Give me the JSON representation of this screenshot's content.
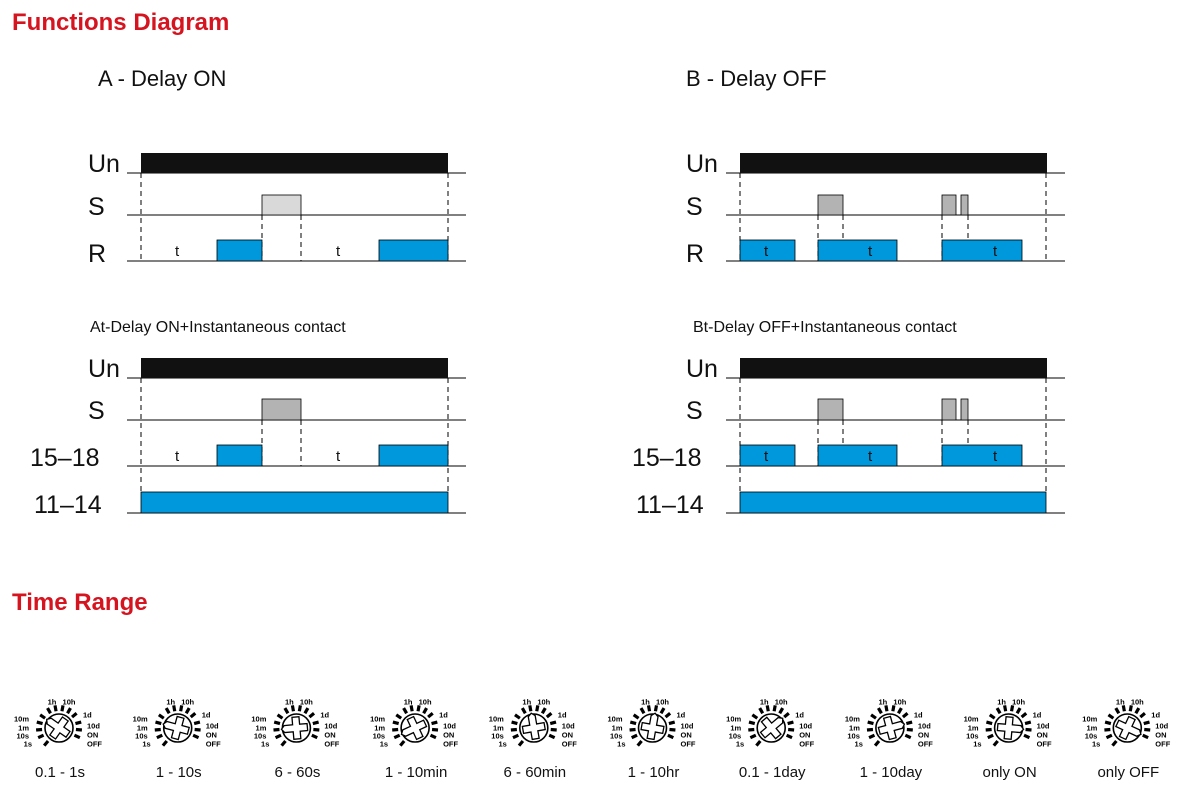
{
  "headings": {
    "functions": "Functions Diagram",
    "time_range": "Time Range"
  },
  "colors": {
    "heading": "#d6141f",
    "un_bar": "#111111",
    "relay_on": "#0098dc",
    "switch_light": "#d9d9d9",
    "switch_gray": "#b3b3b3"
  },
  "diagrams": [
    {
      "title": "A - Delay ON",
      "rows": [
        "Un",
        "S",
        "R"
      ],
      "t_labels": [
        "t",
        "t"
      ]
    },
    {
      "title": "B - Delay OFF",
      "rows": [
        "Un",
        "S",
        "R"
      ],
      "t_labels": [
        "t",
        "t",
        "t"
      ]
    },
    {
      "title": "At-Delay ON+Instantaneous contact",
      "rows": [
        "Un",
        "S",
        "15–18",
        "11–14"
      ],
      "t_labels": [
        "t",
        "t"
      ]
    },
    {
      "title": "Bt-Delay OFF+Instantaneous contact",
      "rows": [
        "Un",
        "S",
        "15–18",
        "11–14"
      ],
      "t_labels": [
        "t",
        "t",
        "t"
      ]
    }
  ],
  "dial_scale": {
    "left": [
      "10m",
      "1m",
      "10s",
      "1s"
    ],
    "top": [
      "1h",
      "10h"
    ],
    "right": [
      "1d",
      "10d",
      "ON",
      "OFF"
    ]
  },
  "ranges": [
    {
      "label": "0.1 - 1s",
      "pointer": "1s"
    },
    {
      "label": "1 - 10s",
      "pointer": "10s"
    },
    {
      "label": "6 - 60s",
      "pointer": "1m"
    },
    {
      "label": "1 - 10min",
      "pointer": "10m"
    },
    {
      "label": "6 - 60min",
      "pointer": "1h"
    },
    {
      "label": "1 - 10hr",
      "pointer": "10h"
    },
    {
      "label": "0.1 - 1day",
      "pointer": "1d"
    },
    {
      "label": "1 - 10day",
      "pointer": "10d"
    },
    {
      "label": "only ON",
      "pointer": "ON"
    },
    {
      "label": "only OFF",
      "pointer": "OFF"
    }
  ]
}
